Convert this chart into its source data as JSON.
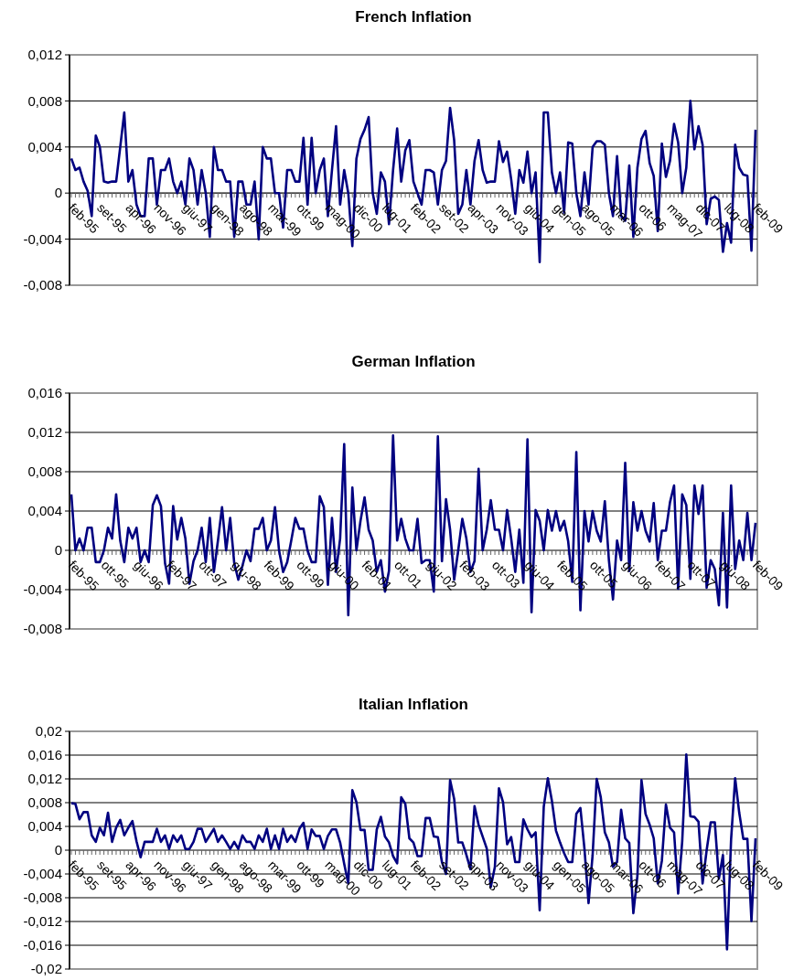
{
  "chart_data": [
    {
      "type": "line",
      "title": "French Inflation",
      "grid": "y",
      "categories": [
        "feb-95",
        null,
        null,
        null,
        null,
        null,
        null,
        "set-95",
        null,
        null,
        null,
        null,
        null,
        null,
        "apr-96",
        null,
        null,
        null,
        null,
        null,
        null,
        "nov-96",
        null,
        null,
        null,
        null,
        null,
        null,
        "giu-97",
        null,
        null,
        null,
        null,
        null,
        null,
        "gen-98",
        null,
        null,
        null,
        null,
        null,
        null,
        "ago-98",
        null,
        null,
        null,
        null,
        null,
        null,
        "mar-99",
        null,
        null,
        null,
        null,
        null,
        null,
        "ott-99",
        null,
        null,
        null,
        null,
        null,
        null,
        "mag-00",
        null,
        null,
        null,
        null,
        null,
        null,
        "dic-00",
        null,
        null,
        null,
        null,
        null,
        null,
        "lug-01",
        null,
        null,
        null,
        null,
        null,
        null,
        "feb-02",
        null,
        null,
        null,
        null,
        null,
        null,
        "set-02",
        null,
        null,
        null,
        null,
        null,
        null,
        "apr-03",
        null,
        null,
        null,
        null,
        null,
        null,
        "nov-03",
        null,
        null,
        null,
        null,
        null,
        null,
        "giu-04",
        null,
        null,
        null,
        null,
        null,
        null,
        "gen-05",
        null,
        null,
        null,
        null,
        null,
        null,
        "ago-05",
        null,
        null,
        null,
        null,
        null,
        null,
        "mar-06",
        null,
        null,
        null,
        null,
        null,
        null,
        "ott-06",
        null,
        null,
        null,
        null,
        null,
        null,
        "mag-07",
        null,
        null,
        null,
        null,
        null,
        null,
        "dic-07",
        null,
        null,
        null,
        null,
        null,
        null,
        "lug-08",
        null,
        null,
        null,
        null,
        null,
        null,
        "feb-09"
      ],
      "series": [
        {
          "color": "#000080",
          "values": [
            0.003,
            0.002,
            0.0022,
            0.001,
            0.0002,
            -0.002,
            0.005,
            0.004,
            0.001,
            0.0009,
            0.001,
            0.001,
            0.004,
            0.007,
            0.001,
            0.002,
            -0.001,
            -0.002,
            -0.002,
            0.003,
            0.003,
            -0.001,
            0.002,
            0.002,
            0.003,
            0.001,
            0,
            0.001,
            -0.001,
            0.003,
            0.002,
            -0.001,
            0.002,
            0,
            -0.0038,
            0.004,
            0.002,
            0.002,
            0.001,
            0.001,
            -0.0038,
            0.001,
            0.001,
            -0.001,
            -0.001,
            0.001,
            -0.004,
            0.004,
            0.003,
            0.003,
            0,
            0,
            -0.003,
            0.002,
            0.002,
            0.001,
            0.001,
            0.0048,
            -0.001,
            0.0048,
            0,
            0.002,
            0.003,
            -0.002,
            0.002,
            0.0058,
            -0.001,
            0.002,
            0,
            -0.0046,
            0.003,
            0.0047,
            0.0055,
            0.0066,
            0,
            -0.0018,
            0.0018,
            0.001,
            -0.0027,
            0.002,
            0.0056,
            0.001,
            0.0037,
            0.0046,
            0.001,
            0,
            -0.001,
            0.002,
            0.002,
            0.0018,
            -0.001,
            0.002,
            0.0028,
            0.0074,
            0.0046,
            -0.0018,
            -0.001,
            0.002,
            -0.001,
            0.0028,
            0.0046,
            0.002,
            0.0009,
            0.001,
            0.001,
            0.0045,
            0.0027,
            0.0036,
            0.0012,
            -0.0018,
            0.002,
            0.0009,
            0.0036,
            0,
            0.0018,
            -0.006,
            0.007,
            0.007,
            0.0018,
            0,
            0.0018,
            -0.0017,
            0.0044,
            0.0043,
            0,
            -0.002,
            0.0018,
            -0.001,
            0.004,
            0.0045,
            0.0045,
            0.0042,
            0,
            -0.002,
            0.0032,
            -0.002,
            -0.0024,
            0.0024,
            -0.0038,
            0.0022,
            0.0047,
            0.0054,
            0.0026,
            0.0015,
            -0.0033,
            0.0043,
            0.0014,
            0.0028,
            0.006,
            0.0044,
            0,
            0.0022,
            0.008,
            0.0038,
            0.0058,
            0.0042,
            -0.0027,
            -0.0005,
            -0.0003,
            -0.0006,
            -0.0051,
            -0.0026,
            -0.0043,
            0.0042,
            0.0022,
            0.0016,
            0.0015,
            -0.005,
            0.0055
          ]
        }
      ],
      "ylim": [
        -0.008,
        0.012
      ],
      "yticks": [
        {
          "value": -0.008,
          "label": "-0,008"
        },
        {
          "value": -0.004,
          "label": "-0,004"
        },
        {
          "value": 0,
          "label": "0"
        },
        {
          "value": 0.004,
          "label": "0,004"
        },
        {
          "value": 0.008,
          "label": "0,008"
        },
        {
          "value": 0.012,
          "label": "0,012"
        }
      ]
    },
    {
      "type": "line",
      "title": "German Inflation",
      "grid": "y",
      "categories": [
        "feb-95",
        null,
        null,
        null,
        null,
        null,
        null,
        null,
        "ott-95",
        null,
        null,
        null,
        null,
        null,
        null,
        null,
        "giu-96",
        null,
        null,
        null,
        null,
        null,
        null,
        null,
        "feb-97",
        null,
        null,
        null,
        null,
        null,
        null,
        null,
        "ott-97",
        null,
        null,
        null,
        null,
        null,
        null,
        null,
        "giu-98",
        null,
        null,
        null,
        null,
        null,
        null,
        null,
        "feb-99",
        null,
        null,
        null,
        null,
        null,
        null,
        null,
        "ott-99",
        null,
        null,
        null,
        null,
        null,
        null,
        null,
        "giu-00",
        null,
        null,
        null,
        null,
        null,
        null,
        null,
        "feb-01",
        null,
        null,
        null,
        null,
        null,
        null,
        null,
        "ott-01",
        null,
        null,
        null,
        null,
        null,
        null,
        null,
        "giu-02",
        null,
        null,
        null,
        null,
        null,
        null,
        null,
        "feb-03",
        null,
        null,
        null,
        null,
        null,
        null,
        null,
        "ott-03",
        null,
        null,
        null,
        null,
        null,
        null,
        null,
        "giu-04",
        null,
        null,
        null,
        null,
        null,
        null,
        null,
        "feb-05",
        null,
        null,
        null,
        null,
        null,
        null,
        null,
        "ott-05",
        null,
        null,
        null,
        null,
        null,
        null,
        null,
        "giu-06",
        null,
        null,
        null,
        null,
        null,
        null,
        null,
        "feb-07",
        null,
        null,
        null,
        null,
        null,
        null,
        null,
        "ott-07",
        null,
        null,
        null,
        null,
        null,
        null,
        null,
        "giu-08",
        null,
        null,
        null,
        null,
        null,
        null,
        null,
        "feb-09"
      ],
      "series": [
        {
          "color": "#000080",
          "values": [
            0.0057,
            0,
            0.0012,
            0,
            0.0023,
            0.0023,
            -0.0012,
            -0.0012,
            0,
            0.0023,
            0.0012,
            0.0057,
            0.001,
            -0.0012,
            0.0023,
            0.0012,
            0.0023,
            -0.0012,
            0,
            -0.0012,
            0.0046,
            0.0056,
            0.0045,
            -0.0013,
            -0.0034,
            0.0045,
            0.0011,
            0.0033,
            0.0012,
            -0.0034,
            -0.0011,
            0,
            0.0023,
            -0.0012,
            0.0033,
            -0.0022,
            0.001,
            0.0044,
            0,
            0.0033,
            -0.0013,
            -0.003,
            -0.0016,
            0,
            -0.0011,
            0.0022,
            0.0022,
            0.0033,
            0,
            0.001,
            0.0044,
            0,
            -0.0022,
            -0.0012,
            0.001,
            0.0033,
            0.0022,
            0.0022,
            0,
            -0.0012,
            -0.0012,
            0.0055,
            0.0044,
            -0.0035,
            0.0033,
            -0.0022,
            0.0012,
            0.0108,
            -0.0066,
            0.0064,
            0,
            0.003,
            0.0054,
            0.0021,
            0.001,
            -0.0022,
            -0.001,
            -0.0042,
            -0.0021,
            0.0117,
            0.001,
            0.0032,
            0.0012,
            0,
            0,
            0.0032,
            -0.0013,
            -0.001,
            -0.001,
            -0.0042,
            0.0116,
            -0.0011,
            0.0052,
            0.0021,
            -0.003,
            0,
            0.0032,
            0.0012,
            -0.0022,
            -0.0011,
            0.0083,
            0,
            0.0021,
            0.0051,
            0.0021,
            0.0021,
            0,
            0.0041,
            0.0012,
            -0.0022,
            0.0021,
            -0.0033,
            0.0113,
            -0.0063,
            0.0041,
            0.003,
            0,
            0.0041,
            0.002,
            0.004,
            0.002,
            0.003,
            0.0009,
            -0.0032,
            0.01,
            -0.0061,
            0.004,
            0.0009,
            0.004,
            0.002,
            0.0009,
            0.005,
            -0.001,
            -0.005,
            0.001,
            -0.001,
            0.0089,
            -0.0021,
            0.0049,
            0.002,
            0.004,
            0.002,
            0.0009,
            0.0048,
            -0.001,
            0.002,
            0.002,
            0.0049,
            0.0066,
            -0.0039,
            0.0057,
            0.0046,
            -0.0029,
            0.0066,
            0.0037,
            0.0066,
            -0.0038,
            -0.001,
            -0.0019,
            -0.0056,
            0.0038,
            -0.0058,
            0.0066,
            -0.0019,
            0.001,
            -0.001,
            0.0038,
            -0.001,
            0.0028
          ]
        }
      ],
      "ylim": [
        -0.008,
        0.016
      ],
      "yticks": [
        {
          "value": -0.008,
          "label": "-0,008"
        },
        {
          "value": -0.004,
          "label": "-0,004"
        },
        {
          "value": 0,
          "label": "0"
        },
        {
          "value": 0.004,
          "label": "0,004"
        },
        {
          "value": 0.008,
          "label": "0,008"
        },
        {
          "value": 0.012,
          "label": "0,012"
        },
        {
          "value": 0.016,
          "label": "0,016"
        }
      ]
    },
    {
      "type": "line",
      "title": "Italian Inflation",
      "grid": "y",
      "categories": [
        "feb-95",
        null,
        null,
        null,
        null,
        null,
        null,
        "set-95",
        null,
        null,
        null,
        null,
        null,
        null,
        "apr-96",
        null,
        null,
        null,
        null,
        null,
        null,
        "nov-96",
        null,
        null,
        null,
        null,
        null,
        null,
        "giu-97",
        null,
        null,
        null,
        null,
        null,
        null,
        "gen-98",
        null,
        null,
        null,
        null,
        null,
        null,
        "ago-98",
        null,
        null,
        null,
        null,
        null,
        null,
        "mar-99",
        null,
        null,
        null,
        null,
        null,
        null,
        "ott-99",
        null,
        null,
        null,
        null,
        null,
        null,
        "mag-00",
        null,
        null,
        null,
        null,
        null,
        null,
        "dic-00",
        null,
        null,
        null,
        null,
        null,
        null,
        "lug-01",
        null,
        null,
        null,
        null,
        null,
        null,
        "feb-02",
        null,
        null,
        null,
        null,
        null,
        null,
        "set-02",
        null,
        null,
        null,
        null,
        null,
        null,
        "apr-03",
        null,
        null,
        null,
        null,
        null,
        null,
        "nov-03",
        null,
        null,
        null,
        null,
        null,
        null,
        "giu-04",
        null,
        null,
        null,
        null,
        null,
        null,
        "gen-05",
        null,
        null,
        null,
        null,
        null,
        null,
        "ago-05",
        null,
        null,
        null,
        null,
        null,
        null,
        "mar-06",
        null,
        null,
        null,
        null,
        null,
        null,
        "ott-06",
        null,
        null,
        null,
        null,
        null,
        null,
        "mag-07",
        null,
        null,
        null,
        null,
        null,
        null,
        "dic-07",
        null,
        null,
        null,
        null,
        null,
        null,
        "lug-08",
        null,
        null,
        null,
        null,
        null,
        null,
        "feb-09"
      ],
      "series": [
        {
          "color": "#000080",
          "values": [
            0.0079,
            0.0078,
            0.0052,
            0.0064,
            0.0064,
            0.0025,
            0.0014,
            0.0038,
            0.0025,
            0.0063,
            0.0014,
            0.0038,
            0.0051,
            0.0025,
            0.0038,
            0.0049,
            0.0015,
            -0.0012,
            0.0014,
            0.0014,
            0.0014,
            0.0036,
            0.0014,
            0.0025,
            0.0002,
            0.0025,
            0.0014,
            0.0025,
            0.0002,
            0.0002,
            0.0014,
            0.0036,
            0.0036,
            0.0014,
            0.0025,
            0.0036,
            0.0014,
            0.0025,
            0.0014,
            0.0002,
            0.0014,
            0.0002,
            0.0025,
            0.0014,
            0.0014,
            0.0002,
            0.0025,
            0.0014,
            0.0036,
            0.0002,
            0.0025,
            0.0002,
            0.0036,
            0.0014,
            0.0025,
            0.0014,
            0.0036,
            0.0046,
            0.0002,
            0.0035,
            0.0024,
            0.0024,
            0.0002,
            0.0024,
            0.0035,
            0.0035,
            0.0013,
            -0.0023,
            -0.0056,
            0.0101,
            0.0081,
            0.0034,
            0.0034,
            -0.0033,
            -0.0033,
            0.0035,
            0.0056,
            0.0023,
            0.0013,
            -0.001,
            -0.0022,
            0.0089,
            0.0078,
            0.002,
            0.0013,
            -0.001,
            -0.001,
            0.0054,
            0.0054,
            0.0023,
            0.0022,
            -0.002,
            -0.004,
            0.0118,
            0.0086,
            0.0013,
            0.0013,
            -0.0008,
            -0.0032,
            0.0074,
            0.0043,
            0.0023,
            0.0003,
            -0.0062,
            -0.0028,
            0.0104,
            0.0081,
            0.001,
            0.0022,
            -0.002,
            -0.002,
            0.0052,
            0.0035,
            0.0022,
            0.003,
            -0.0101,
            0.0073,
            0.0121,
            0.0083,
            0.0033,
            0.0013,
            -0.0005,
            -0.002,
            -0.002,
            0.0061,
            0.0071,
            0.0002,
            -0.0089,
            -0.0008,
            0.012,
            0.0089,
            0.003,
            0.0013,
            -0.0028,
            -0.002,
            0.0068,
            0.002,
            0.0012,
            -0.0106,
            -0.0043,
            0.0118,
            0.0061,
            0.0043,
            0.002,
            -0.0056,
            -0.0018,
            0.0077,
            0.0038,
            0.003,
            -0.0073,
            0.0015,
            0.0161,
            0.0057,
            0.0056,
            0.0048,
            -0.0056,
            0,
            0.0047,
            0.0047,
            -0.0048,
            -0.0008,
            -0.0167,
            0.0018,
            0.0121,
            0.0063,
            0.0019,
            0.0019,
            -0.0119,
            0.002
          ]
        }
      ],
      "ylim": [
        -0.02,
        0.02
      ],
      "yticks": [
        {
          "value": -0.02,
          "label": "-0,02"
        },
        {
          "value": -0.016,
          "label": "-0,016"
        },
        {
          "value": -0.012,
          "label": "-0,012"
        },
        {
          "value": -0.008,
          "label": "-0,008"
        },
        {
          "value": -0.004,
          "label": "-0,004"
        },
        {
          "value": 0,
          "label": "0"
        },
        {
          "value": 0.004,
          "label": "0,004"
        },
        {
          "value": 0.008,
          "label": "0,008"
        },
        {
          "value": 0.012,
          "label": "0,012"
        },
        {
          "value": 0.016,
          "label": "0,016"
        },
        {
          "value": 0.02,
          "label": "0,02"
        }
      ]
    }
  ]
}
